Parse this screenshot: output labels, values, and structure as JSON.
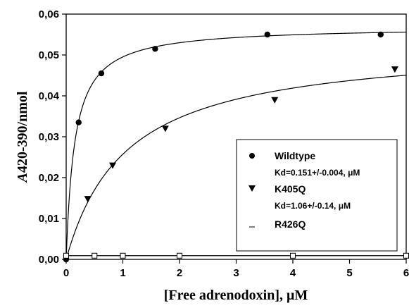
{
  "chart_data": {
    "type": "scatter",
    "xlabel": "[Free adrenodoxin], μM",
    "ylabel_italic": "A",
    "ylabel_rest": "420-390/nmol",
    "xlim": [
      0,
      6
    ],
    "ylim": [
      0,
      0.06
    ],
    "x_ticks": [
      "0",
      "1",
      "2",
      "3",
      "4",
      "5",
      "6"
    ],
    "y_ticks": [
      "0,00",
      "0,01",
      "0,02",
      "0,03",
      "0,04",
      "0,05",
      "0,06"
    ],
    "grid": false,
    "legend_position": "lower-right",
    "series": [
      {
        "name": "Wildtype",
        "annotation": "Kd=0.151+/-0.004, μM",
        "marker": "circle",
        "x": [
          0,
          0.22,
          0.62,
          1.57,
          3.55,
          5.55
        ],
        "y": [
          0.0,
          0.0335,
          0.0455,
          0.0515,
          0.055,
          0.055
        ],
        "fit": {
          "model": "hyperbola",
          "bmax": 0.057,
          "kd": 0.151
        }
      },
      {
        "name": "K405Q",
        "annotation": "Kd=1.06+/-0.14, μM",
        "marker": "triangle-down",
        "x": [
          0.38,
          0.82,
          1.75,
          3.68,
          5.8
        ],
        "y": [
          0.0148,
          0.023,
          0.032,
          0.039,
          0.0465
        ],
        "fit": {
          "model": "hyperbola",
          "bmax": 0.053,
          "kd": 1.06
        }
      },
      {
        "name": "R426Q",
        "annotation": "",
        "marker": "square-open",
        "x": [
          0,
          0.5,
          1.0,
          2.0,
          4.0,
          6.0
        ],
        "y": [
          0.0009,
          0.0009,
          0.0009,
          0.0009,
          0.0009,
          0.0009
        ],
        "fit": {
          "model": "flat",
          "value": 0.0009
        }
      }
    ]
  }
}
